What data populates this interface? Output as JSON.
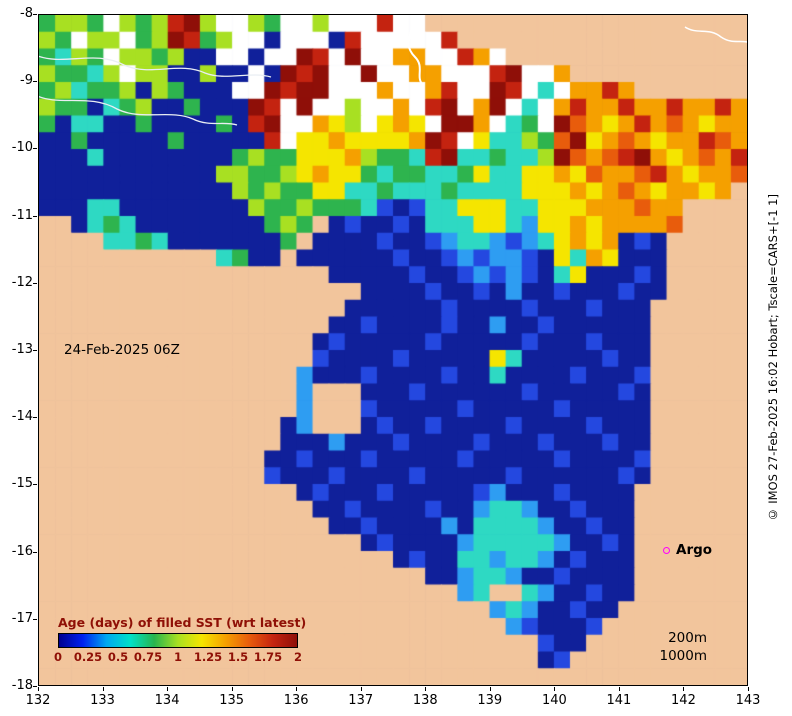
{
  "map": {
    "date_label": "24-Feb-2025 06Z",
    "argo": {
      "label": "Argo",
      "marker_color": "#ff00ff"
    },
    "depth_labels": [
      "200m",
      "1000m"
    ],
    "side_note": "© IMOS 27-Feb-2025 16:02 Hobart; Tscale=CARS+[-1 1]",
    "axes": {
      "x_ticks": [
        "132",
        "133",
        "134",
        "135",
        "136",
        "137",
        "138",
        "139",
        "140",
        "141",
        "142",
        "143"
      ],
      "y_ticks": [
        "-8",
        "-9",
        "-10",
        "-11",
        "-12",
        "-13",
        "-14",
        "-15",
        "-16",
        "-17",
        "-18"
      ]
    },
    "colorbar": {
      "title": "Age (days) of filled SST (wrt latest)",
      "ticks": [
        "0",
        "0.25",
        "0.5",
        "0.75",
        "1",
        "1.25",
        "1.5",
        "1.75",
        "2"
      ],
      "label_color": "#8f1006",
      "gradient": [
        "#000090",
        "#0020f0",
        "#00a8f0",
        "#00e0c8",
        "#28b44e",
        "#a8e022",
        "#f5e500",
        "#f5a000",
        "#e85c0c",
        "#c42310",
        "#8f0f08"
      ]
    },
    "geo": {
      "lon_min": 132,
      "lon_max": 143,
      "lat_min": -18,
      "lat_max": -8
    },
    "palette": {
      "L": "#f2c59c",
      ".": "#10209a",
      "b": "#2448e0",
      "c": "#2e9df2",
      "t": "#2ed9c3",
      "g": "#2eb44e",
      "y": "#a8e022",
      "Y": "#f5e500",
      "o": "#f5a000",
      "O": "#e85c0c",
      "r": "#c42310",
      "R": "#8f0f08",
      "w": "#ffffff"
    },
    "grid_cols": 44,
    "grid_rows": 40,
    "grid": [
      "gyygwygyrRywwygwwywwwrwwLLLLLLLLLLLLLLLLLLLL",
      "ygwyywgyRrgyww.www.rwwwwwrLLLLLLLLLLLLLLLLLL",
      "gtygwyygy..ww.wwRrwRwwoowwrowLLLLLLLLLLLLLLL",
      "yggtywyy..y..w.RrRwwRwwoowwwrRwwoLLLLLLLLLLL",
      "gytggy.yg...wwRrRRwwwowworwwRrwtwooroLLLLLLL",
      "ygg.tgy..g...RrwRwwywwowrRwoRwtworooroorooro",
      "g.tt..g....g.rRwwoYywYoYwRRowtgwROoYoroOoYoo",
      "..g.....g.....rwYYoYYYYoRrwYttygORYoOoYoorOo",
      "...t........gyggYYYoyggtrRttgttyROoOrRoYoOor",
      "...........yyggyYoYYgtggttgYttYYoYOooOroYooO",
      "............ygyggYYttgtttgttttYYYoYoOoYooYoL",
      "...tt........yggygggtb.bttYYYttYYYoooOooLLLL",
      "LL.tgt........gygL.b..b.tttYYtcYYoYooooOLLLL",
      "LLLLttgt.......gL....b..bcttcbctYoYo.b.LLLLL",
      "LLLLLLLLLLLtg..L......b..bcbccb.YtoY...LLLLL",
      "LLLLLLLLLLLLLLLLLL.....b..bcbcb.tY...b.LLLLL",
      "LLLLLLLLLLLLLLLLLLLL....b..b.c..b...b..LLLLL",
      "LLLLLLLLLLLLLLLLLLL......b....b...b...LLLLLL",
      "LLLLLLLLLLLLLLLLLL..b....b..c..b......LLLLLL",
      "LLLLLLLLLLLLLLLLL.b.....b.....b...b...LLLLLL",
      "LLLLLLLLLLLLLLLLLb....b.....Yt.....b..LLLLLL",
      "LLLLLLLLLLLLLLLLc...b....b..t....b...bLLLLLL",
      "LLLLLLLLLLLLLLLLcLLL...b......b.....b.LLLLLL",
      "LLLLLLLLLLLLLLLLcLLLb.....b.....b.....LLLLLL",
      "LLLLLLLLLLLLLLL.cLLL.b..b....b....b...LLLLLL",
      "LLLLLLLLLLLLLLL...c...b....b...b...b..LLLLLL",
      "LLLLLLLLLLLLLL..b...b.....b.....b....bLLLLLL",
      "LLLLLLLLLLLLLLb...b....b.....b......b.LLLLLL",
      "LLLLLLLLLLLLLLLL.b...b.....bc...b....LLLLLLL",
      "LLLLLLLLLLLLLLLLL..b....b..cttc..b...LLLLLLL",
      "LLLLLLLLLLLLLLLLLL..b....c.ttttc..b..LLLLLLL",
      "LLLLLLLLLLLLLLLLLLLL.b....ctttttc..b.LLLLLLL",
      "LLLLLLLLLLLLLLLLLLLLLL.b..ttcttc.b...LLLLLLL",
      "LLLLLLLLLLLLLLLLLLLLLLLL..cttc..b....LLLLLLL",
      "LLLLLLLLLLLLLLLLLLLLLLLLLLctLLtc..b..LLLLLLL",
      "LLLLLLLLLLLLLLLLLLLLLLLLLLLLctc..b..LLLLLLLL",
      "LLLLLLLLLLLLLLLLLLLLLLLLLLLLLcb...bLLLLLLLLL",
      "LLLLLLLLLLLLLLLLLLLLLLLLLLLLLLLb..LLLLLLLLLL",
      "LLLLLLLLLLLLLLLLLLLLLLLLLLLLLLL.bLLLLLLLLLLL",
      "LLLLLLLLLLLLLLLLLLLLLLLLLLLLLLLLLLLLLLLLLLLL"
    ]
  }
}
